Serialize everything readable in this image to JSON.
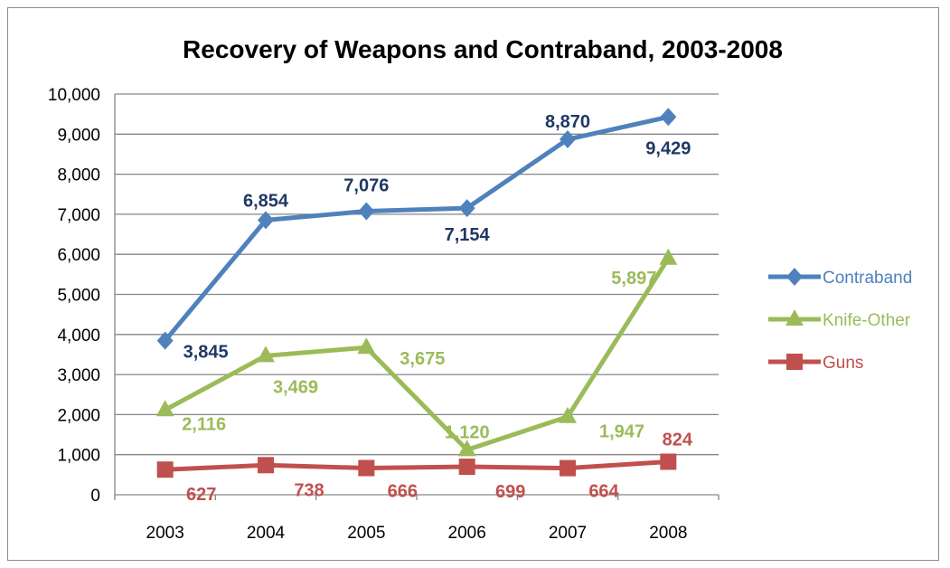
{
  "chart_data": {
    "type": "line",
    "title": "Recovery of Weapons and Contraband, 2003-2008",
    "categories": [
      "2003",
      "2004",
      "2005",
      "2006",
      "2007",
      "2008"
    ],
    "ylim": [
      0,
      10000
    ],
    "yticks": [
      "0",
      "1,000",
      "2,000",
      "3,000",
      "4,000",
      "5,000",
      "6,000",
      "7,000",
      "8,000",
      "9,000",
      "10,000"
    ],
    "grid": true,
    "legend_position": "right",
    "series": [
      {
        "name": "Contraband",
        "color": "#4f81bd",
        "label_color": "#1f3864",
        "marker": "diamond",
        "values": [
          3845,
          6854,
          7076,
          7154,
          8870,
          9429
        ],
        "labels": [
          "3,845",
          "6,854",
          "7,076",
          "7,154",
          "8,870",
          "9,429"
        ]
      },
      {
        "name": "Knife-Other",
        "color": "#9bbb59",
        "label_color": "#9bbb59",
        "marker": "triangle",
        "values": [
          2116,
          3469,
          3675,
          1120,
          1947,
          5897
        ],
        "labels": [
          "2,116",
          "3,469",
          "3,675",
          "1,120",
          "1,947",
          "5,897"
        ]
      },
      {
        "name": "Guns",
        "color": "#c0504d",
        "label_color": "#c0504d",
        "marker": "square",
        "values": [
          627,
          738,
          666,
          699,
          664,
          824
        ],
        "labels": [
          "627",
          "738",
          "666",
          "699",
          "664",
          "824"
        ]
      }
    ]
  }
}
